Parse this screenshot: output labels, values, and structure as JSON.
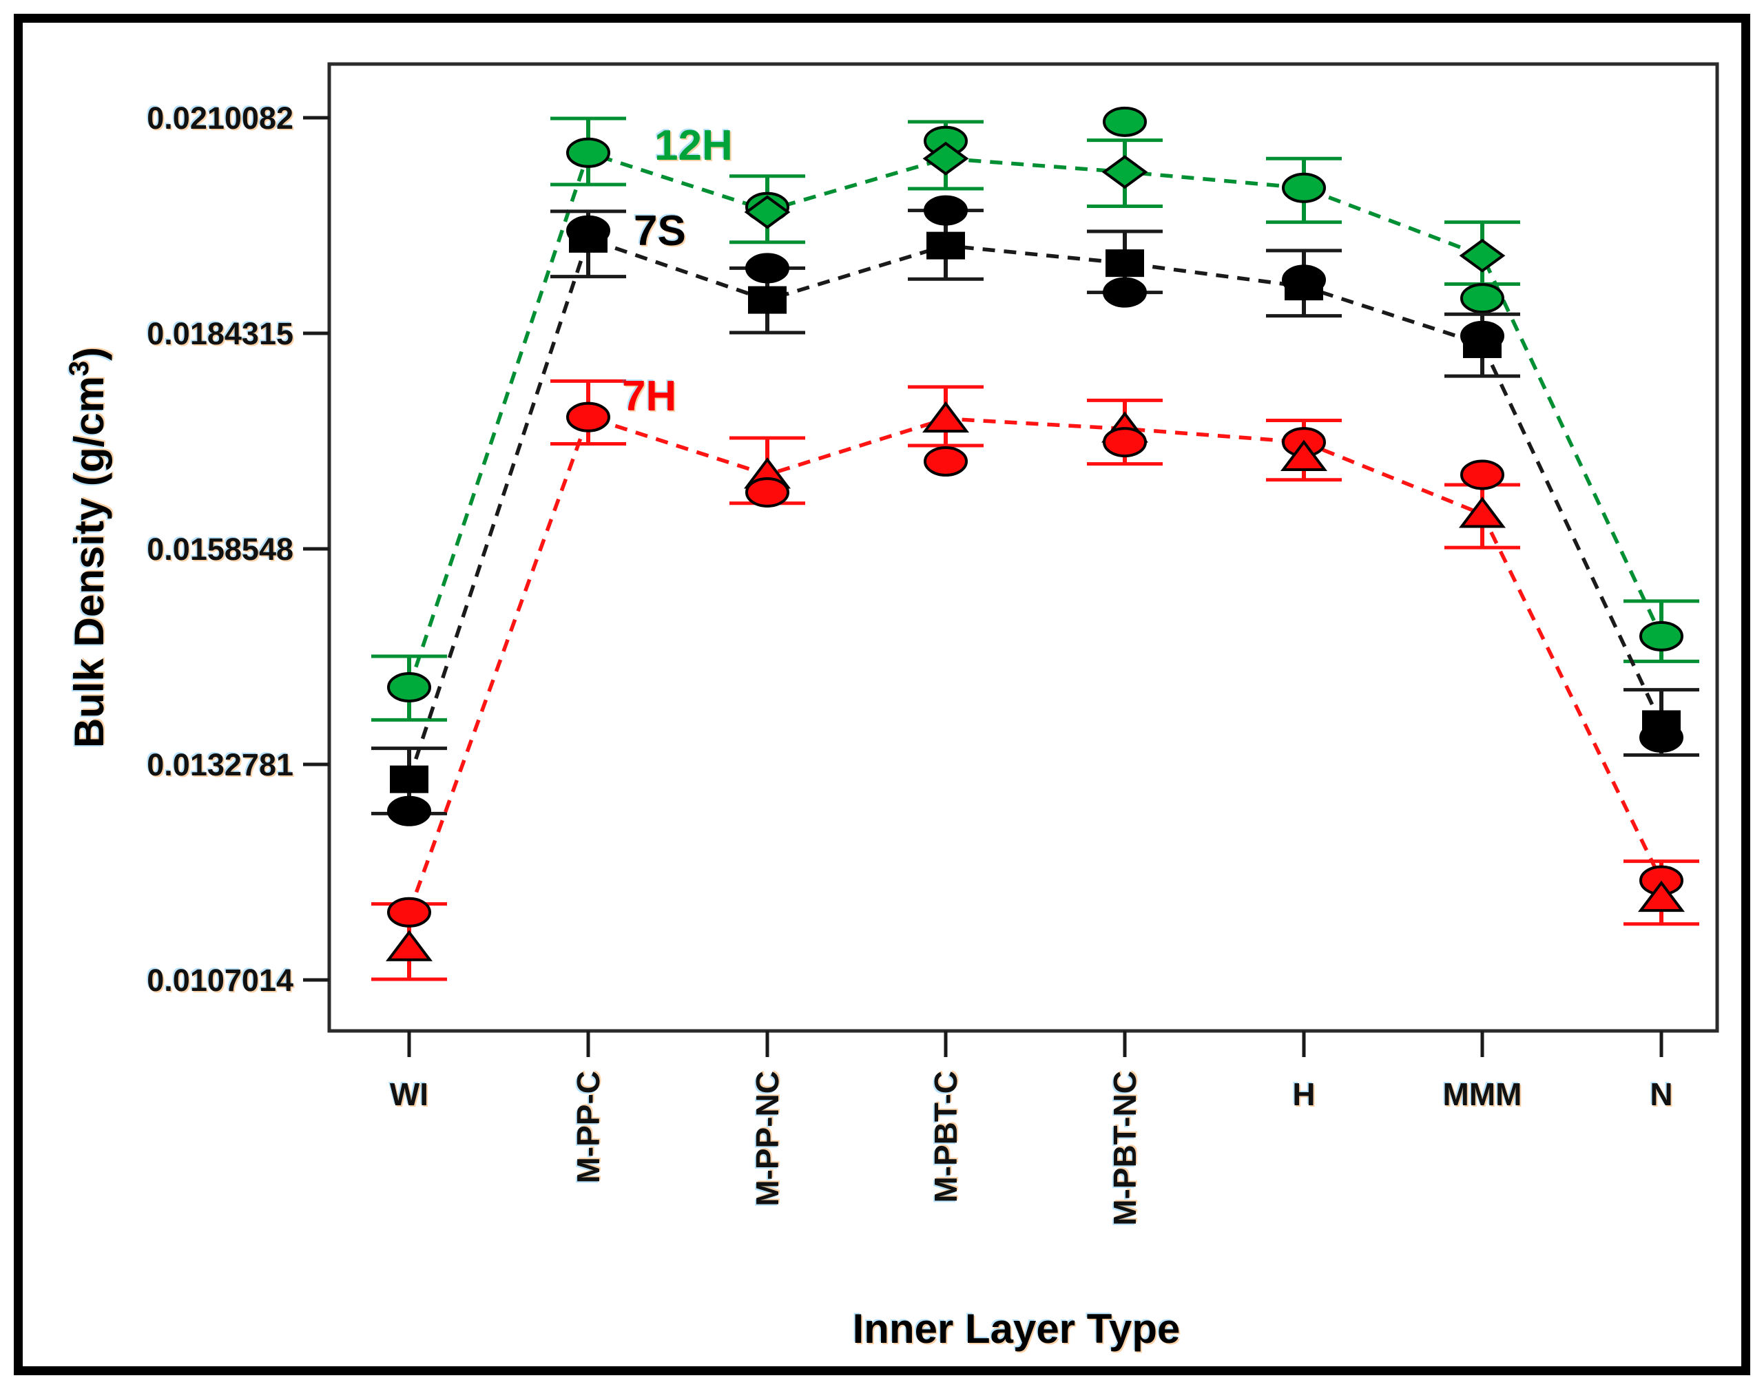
{
  "figure": {
    "background": "#ffffff",
    "border_color": "#000000"
  },
  "chart_data": {
    "type": "line",
    "title": "",
    "xlabel": "Inner Layer Type",
    "ylabel": "Bulk Density (g/cm³)",
    "ylabel_parts": {
      "pre": "Bulk Density (g/cm",
      "sup": "3",
      "post": ")"
    },
    "grid": false,
    "legend_position": "inline-labels",
    "categories": [
      "WI",
      "M-PP-C",
      "M-PP-NC",
      "M-PBT-C",
      "M-PBT-NC",
      "H",
      "MMM",
      "N"
    ],
    "rotated_category_labels": [
      "M-PP-C",
      "M-PP-NC",
      "M-PBT-C",
      "M-PBT-NC"
    ],
    "y_tick_values": [
      0.0107014,
      0.0132781,
      0.0158548,
      0.0184315,
      0.0210082
    ],
    "y_tick_labels": [
      "0.0107014",
      "0.0132781",
      "0.0158548",
      "0.0184315",
      "0.0210082"
    ],
    "ylim": [
      0.0100922,
      0.0216502
    ],
    "marker_legend": {
      "ellipse": "mean-ellipse-marker",
      "square": "black-square-marker",
      "diamond": "green-diamond-marker",
      "triangle": "red-triangle-marker"
    },
    "series": [
      {
        "name": "12H",
        "label_color": "#00A33A",
        "line_color": "#008F33",
        "error_color": "#008F33",
        "marker_fill": "#00AB3C",
        "marker_stroke": "#000000",
        "values": [
          0.0142,
          0.02059,
          0.0199,
          0.02052,
          0.02036,
          0.02017,
          0.01936,
          0.01481
        ],
        "err_top": [
          0.01457,
          0.021,
          0.02031,
          0.02096,
          0.02074,
          0.02052,
          0.01976,
          0.01523
        ],
        "err_bot": [
          0.01381,
          0.02021,
          0.01952,
          0.02016,
          0.01995,
          0.01976,
          0.01902,
          0.01451
        ],
        "markers": [
          [
            [
              "ellipse",
              0.0142
            ]
          ],
          [
            [
              "ellipse",
              0.02059
            ]
          ],
          [
            [
              "ellipse",
              0.01994
            ],
            [
              "diamond",
              0.01988
            ]
          ],
          [
            [
              "ellipse",
              0.02073
            ],
            [
              "diamond",
              0.02052
            ]
          ],
          [
            [
              "ellipse",
              0.02096
            ],
            [
              "diamond",
              0.02036
            ]
          ],
          [
            [
              "ellipse",
              0.02017
            ]
          ],
          [
            [
              "diamond",
              0.01936
            ],
            [
              "ellipse",
              0.01885
            ]
          ],
          [
            [
              "ellipse",
              0.01481
            ]
          ]
        ]
      },
      {
        "name": "7S",
        "label_color": "#000000",
        "line_color": "#1a1a1a",
        "error_color": "#1a1a1a",
        "marker_fill": "#000000",
        "marker_stroke": "#000000",
        "values": [
          0.0131,
          0.01956,
          0.01883,
          0.01948,
          0.01927,
          0.01899,
          0.0183,
          0.01376
        ],
        "err_top": [
          0.01347,
          0.01989,
          0.01921,
          0.0199,
          0.01965,
          0.01942,
          0.01866,
          0.01417
        ],
        "err_bot": [
          0.01269,
          0.01911,
          0.01844,
          0.01908,
          0.01892,
          0.01864,
          0.01792,
          0.01339
        ],
        "markers": [
          [
            [
              "square",
              0.0131
            ],
            [
              "ellipse",
              0.01272
            ]
          ],
          [
            [
              "ellipse",
              0.01966
            ],
            [
              "square",
              0.01956
            ]
          ],
          [
            [
              "ellipse",
              0.01921
            ],
            [
              "square",
              0.01883
            ]
          ],
          [
            [
              "ellipse",
              0.0199
            ],
            [
              "square",
              0.01948
            ]
          ],
          [
            [
              "square",
              0.01927
            ],
            [
              "ellipse",
              0.01892
            ]
          ],
          [
            [
              "ellipse",
              0.01907
            ],
            [
              "square",
              0.01899
            ]
          ],
          [
            [
              "ellipse",
              0.0184
            ],
            [
              "square",
              0.0183
            ]
          ],
          [
            [
              "square",
              0.01376
            ],
            [
              "ellipse",
              0.0136
            ]
          ]
        ]
      },
      {
        "name": "7H",
        "label_color": "#FF0000",
        "line_color": "#FF1414",
        "error_color": "#FF0F0F",
        "marker_fill": "#FF0A0A",
        "marker_stroke": "#000000",
        "values": [
          0.01151,
          0.01743,
          0.01674,
          0.01741,
          0.01729,
          0.01713,
          0.01627,
          0.01189
        ],
        "err_top": [
          0.01161,
          0.01786,
          0.01718,
          0.01779,
          0.01763,
          0.01739,
          0.01662,
          0.01212
        ],
        "err_bot": [
          0.01071,
          0.01711,
          0.0164,
          0.01709,
          0.01687,
          0.01668,
          0.01587,
          0.01137
        ],
        "markers": [
          [
            [
              "ellipse",
              0.01151
            ],
            [
              "triangle",
              0.01109
            ]
          ],
          [
            [
              "ellipse",
              0.01743
            ]
          ],
          [
            [
              "triangle",
              0.01674
            ],
            [
              "ellipse",
              0.01653
            ]
          ],
          [
            [
              "triangle",
              0.01741
            ],
            [
              "ellipse",
              0.0169
            ]
          ],
          [
            [
              "triangle",
              0.01729
            ],
            [
              "ellipse",
              0.01713
            ]
          ],
          [
            [
              "ellipse",
              0.01713
            ],
            [
              "triangle",
              0.01695
            ]
          ],
          [
            [
              "ellipse",
              0.01674
            ],
            [
              "triangle",
              0.01627
            ]
          ],
          [
            [
              "ellipse",
              0.01189
            ],
            [
              "triangle",
              0.01168
            ]
          ]
        ]
      }
    ]
  }
}
